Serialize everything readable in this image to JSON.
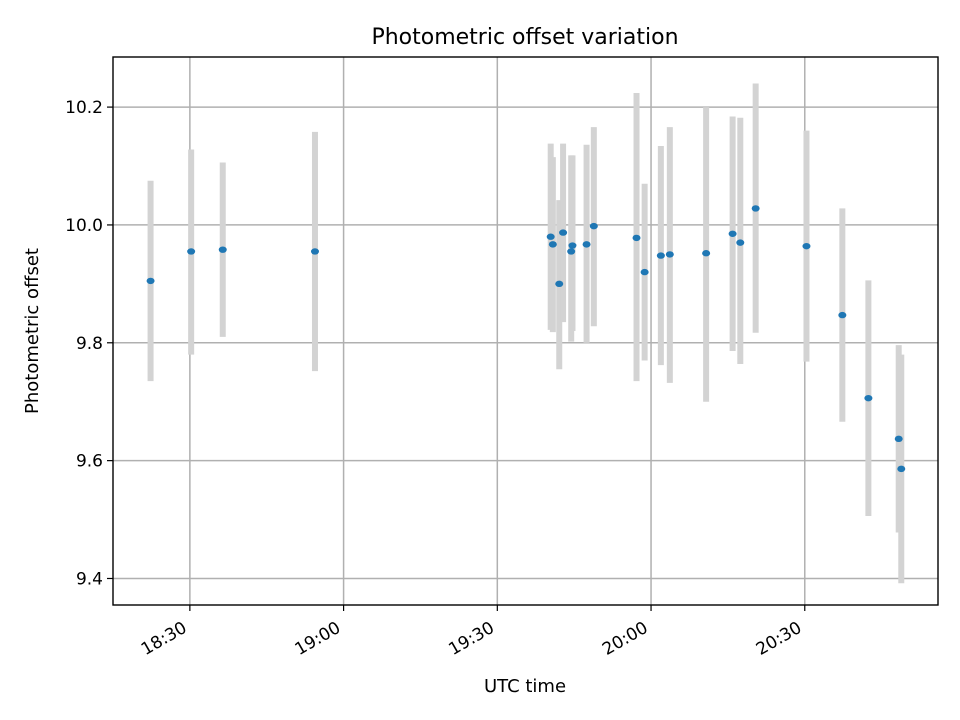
{
  "chart_data": {
    "type": "scatter",
    "title": "Photometric offset variation",
    "xlabel": "UTC time",
    "ylabel": "Photometric offset",
    "xlim": [
      "18:15",
      "20:56"
    ],
    "ylim": [
      9.355,
      10.285
    ],
    "grid": true,
    "x_ticks": [
      "18:30",
      "19:00",
      "19:30",
      "20:00",
      "20:30"
    ],
    "y_ticks": [
      "9.4",
      "9.6",
      "9.8",
      "10.0",
      "10.2"
    ],
    "marker_color": "#1f77b4",
    "errorbar_color": "#d3d3d3",
    "series": [
      {
        "points": [
          {
            "x": "18:22:20",
            "y": 9.905,
            "ylo": 9.735,
            "yhi": 10.075
          },
          {
            "x": "18:30:15",
            "y": 9.955,
            "ylo": 9.78,
            "yhi": 10.128
          },
          {
            "x": "18:36:25",
            "y": 9.958,
            "ylo": 9.81,
            "yhi": 10.106
          },
          {
            "x": "18:54:25",
            "y": 9.955,
            "ylo": 9.752,
            "yhi": 10.158
          },
          {
            "x": "19:40:25",
            "y": 9.98,
            "ylo": 9.822,
            "yhi": 10.138
          },
          {
            "x": "19:40:50",
            "y": 9.967,
            "ylo": 9.818,
            "yhi": 10.115
          },
          {
            "x": "19:42:05",
            "y": 9.9,
            "ylo": 9.755,
            "yhi": 10.042
          },
          {
            "x": "19:42:50",
            "y": 9.987,
            "ylo": 9.835,
            "yhi": 10.138
          },
          {
            "x": "19:44:25",
            "y": 9.955,
            "ylo": 9.802,
            "yhi": 10.118
          },
          {
            "x": "19:44:40",
            "y": 9.965,
            "ylo": 9.82,
            "yhi": 10.118
          },
          {
            "x": "19:47:25",
            "y": 9.967,
            "ylo": 9.8,
            "yhi": 10.136
          },
          {
            "x": "19:48:50",
            "y": 9.998,
            "ylo": 9.828,
            "yhi": 10.166
          },
          {
            "x": "19:57:10",
            "y": 9.978,
            "ylo": 9.735,
            "yhi": 10.224
          },
          {
            "x": "19:58:45",
            "y": 9.92,
            "ylo": 9.77,
            "yhi": 10.07
          },
          {
            "x": "20:01:55",
            "y": 9.948,
            "ylo": 9.762,
            "yhi": 10.134
          },
          {
            "x": "20:03:40",
            "y": 9.95,
            "ylo": 9.732,
            "yhi": 10.166
          },
          {
            "x": "20:10:45",
            "y": 9.952,
            "ylo": 9.7,
            "yhi": 10.2
          },
          {
            "x": "20:15:55",
            "y": 9.985,
            "ylo": 9.786,
            "yhi": 10.184
          },
          {
            "x": "20:17:25",
            "y": 9.97,
            "ylo": 9.764,
            "yhi": 10.182
          },
          {
            "x": "20:20:25",
            "y": 10.028,
            "ylo": 9.817,
            "yhi": 10.24
          },
          {
            "x": "20:30:20",
            "y": 9.964,
            "ylo": 9.768,
            "yhi": 10.16
          },
          {
            "x": "20:37:20",
            "y": 9.847,
            "ylo": 9.666,
            "yhi": 10.028
          },
          {
            "x": "20:42:25",
            "y": 9.706,
            "ylo": 9.506,
            "yhi": 9.906
          },
          {
            "x": "20:48:20",
            "y": 9.637,
            "ylo": 9.478,
            "yhi": 9.796
          },
          {
            "x": "20:48:50",
            "y": 9.586,
            "ylo": 9.392,
            "yhi": 9.78
          }
        ]
      }
    ]
  }
}
